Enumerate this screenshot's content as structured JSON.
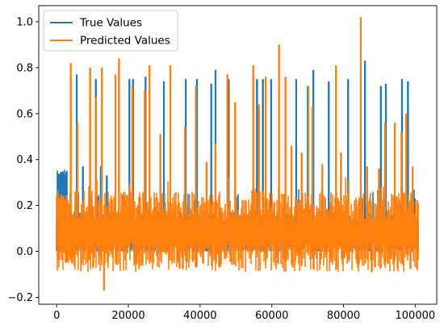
{
  "chart_data": {
    "type": "line",
    "title": "",
    "xlabel": "",
    "ylabel": "",
    "xlim": [
      -5000,
      106000
    ],
    "ylim": [
      -0.23,
      1.07
    ],
    "grid": false,
    "legend_position": "top-left",
    "x_ticks": [
      0,
      20000,
      40000,
      60000,
      80000,
      100000
    ],
    "x_tick_labels": [
      "0",
      "20000",
      "40000",
      "60000",
      "80000",
      "100000"
    ],
    "y_ticks": [
      -0.2,
      0.0,
      0.2,
      0.4,
      0.6,
      0.8,
      1.0
    ],
    "y_tick_labels": [
      "−0.2",
      "0.0",
      "0.2",
      "0.4",
      "0.6",
      "0.8",
      "1.0"
    ],
    "x_range": [
      0,
      100800
    ],
    "series": [
      {
        "name": "True Values",
        "color": "#1f77b4",
        "baseline": 0.08,
        "noise_amplitude": 0.07,
        "floor": 0.0,
        "band_cap": 0.21,
        "early_band": {
          "x": [
            0,
            3000
          ],
          "low": 0.17,
          "high": 0.36
        },
        "spikes": [
          {
            "x": 5600,
            "y": 0.77
          },
          {
            "x": 7300,
            "y": 0.37
          },
          {
            "x": 9200,
            "y": 0.19
          },
          {
            "x": 10900,
            "y": 0.75
          },
          {
            "x": 12300,
            "y": 0.37
          },
          {
            "x": 14000,
            "y": 0.33
          },
          {
            "x": 20300,
            "y": 0.75
          },
          {
            "x": 21300,
            "y": 0.75
          },
          {
            "x": 24800,
            "y": 0.76
          },
          {
            "x": 29900,
            "y": 0.74
          },
          {
            "x": 36000,
            "y": 0.75
          },
          {
            "x": 39100,
            "y": 0.75
          },
          {
            "x": 43100,
            "y": 0.73
          },
          {
            "x": 44300,
            "y": 0.79
          },
          {
            "x": 48000,
            "y": 0.75
          },
          {
            "x": 55900,
            "y": 0.75
          },
          {
            "x": 57500,
            "y": 0.75
          },
          {
            "x": 59800,
            "y": 0.75
          },
          {
            "x": 66800,
            "y": 0.75
          },
          {
            "x": 70000,
            "y": 0.72
          },
          {
            "x": 71600,
            "y": 0.79
          },
          {
            "x": 75900,
            "y": 0.74
          },
          {
            "x": 81300,
            "y": 0.75
          },
          {
            "x": 86000,
            "y": 0.83
          },
          {
            "x": 90400,
            "y": 0.72
          },
          {
            "x": 91800,
            "y": 0.73
          },
          {
            "x": 96300,
            "y": 0.75
          },
          {
            "x": 98000,
            "y": 0.74
          },
          {
            "x": 99900,
            "y": 0.23
          }
        ]
      },
      {
        "name": "Predicted Values",
        "color": "#ff7f0e",
        "baseline": 0.09,
        "noise_amplitude": 0.13,
        "floor": -0.09,
        "band_cap": 0.27,
        "early_band": {
          "x": [
            0,
            3000
          ],
          "low": 0.0,
          "high": 0.25
        },
        "spikes": [
          {
            "x": 3900,
            "y": 0.82
          },
          {
            "x": 5800,
            "y": 0.56
          },
          {
            "x": 9300,
            "y": 0.8
          },
          {
            "x": 10900,
            "y": 0.67
          },
          {
            "x": 12600,
            "y": 0.8
          },
          {
            "x": 13200,
            "y": -0.17
          },
          {
            "x": 16400,
            "y": 0.77
          },
          {
            "x": 17400,
            "y": 0.84
          },
          {
            "x": 21100,
            "y": 0.72
          },
          {
            "x": 24600,
            "y": 0.7
          },
          {
            "x": 25900,
            "y": 0.81
          },
          {
            "x": 28900,
            "y": 0.51
          },
          {
            "x": 31700,
            "y": 0.81
          },
          {
            "x": 35800,
            "y": 0.54
          },
          {
            "x": 38800,
            "y": 0.72
          },
          {
            "x": 41800,
            "y": 0.39
          },
          {
            "x": 44300,
            "y": 0.47
          },
          {
            "x": 47600,
            "y": 0.77
          },
          {
            "x": 49800,
            "y": 0.65
          },
          {
            "x": 54800,
            "y": 0.81
          },
          {
            "x": 56400,
            "y": 0.64
          },
          {
            "x": 58300,
            "y": 0.76
          },
          {
            "x": 62000,
            "y": 0.9
          },
          {
            "x": 63800,
            "y": 0.76
          },
          {
            "x": 65500,
            "y": 0.46
          },
          {
            "x": 68300,
            "y": 0.43
          },
          {
            "x": 70200,
            "y": 0.72
          },
          {
            "x": 71300,
            "y": 0.63
          },
          {
            "x": 74100,
            "y": 0.38
          },
          {
            "x": 77900,
            "y": 0.81
          },
          {
            "x": 79300,
            "y": 0.43
          },
          {
            "x": 84800,
            "y": 1.02
          },
          {
            "x": 86600,
            "y": 0.37
          },
          {
            "x": 89900,
            "y": 0.36
          },
          {
            "x": 91600,
            "y": 0.56
          },
          {
            "x": 94300,
            "y": 0.56
          },
          {
            "x": 96200,
            "y": 0.52
          },
          {
            "x": 97500,
            "y": 0.6
          },
          {
            "x": 99300,
            "y": 0.37
          }
        ]
      }
    ]
  }
}
